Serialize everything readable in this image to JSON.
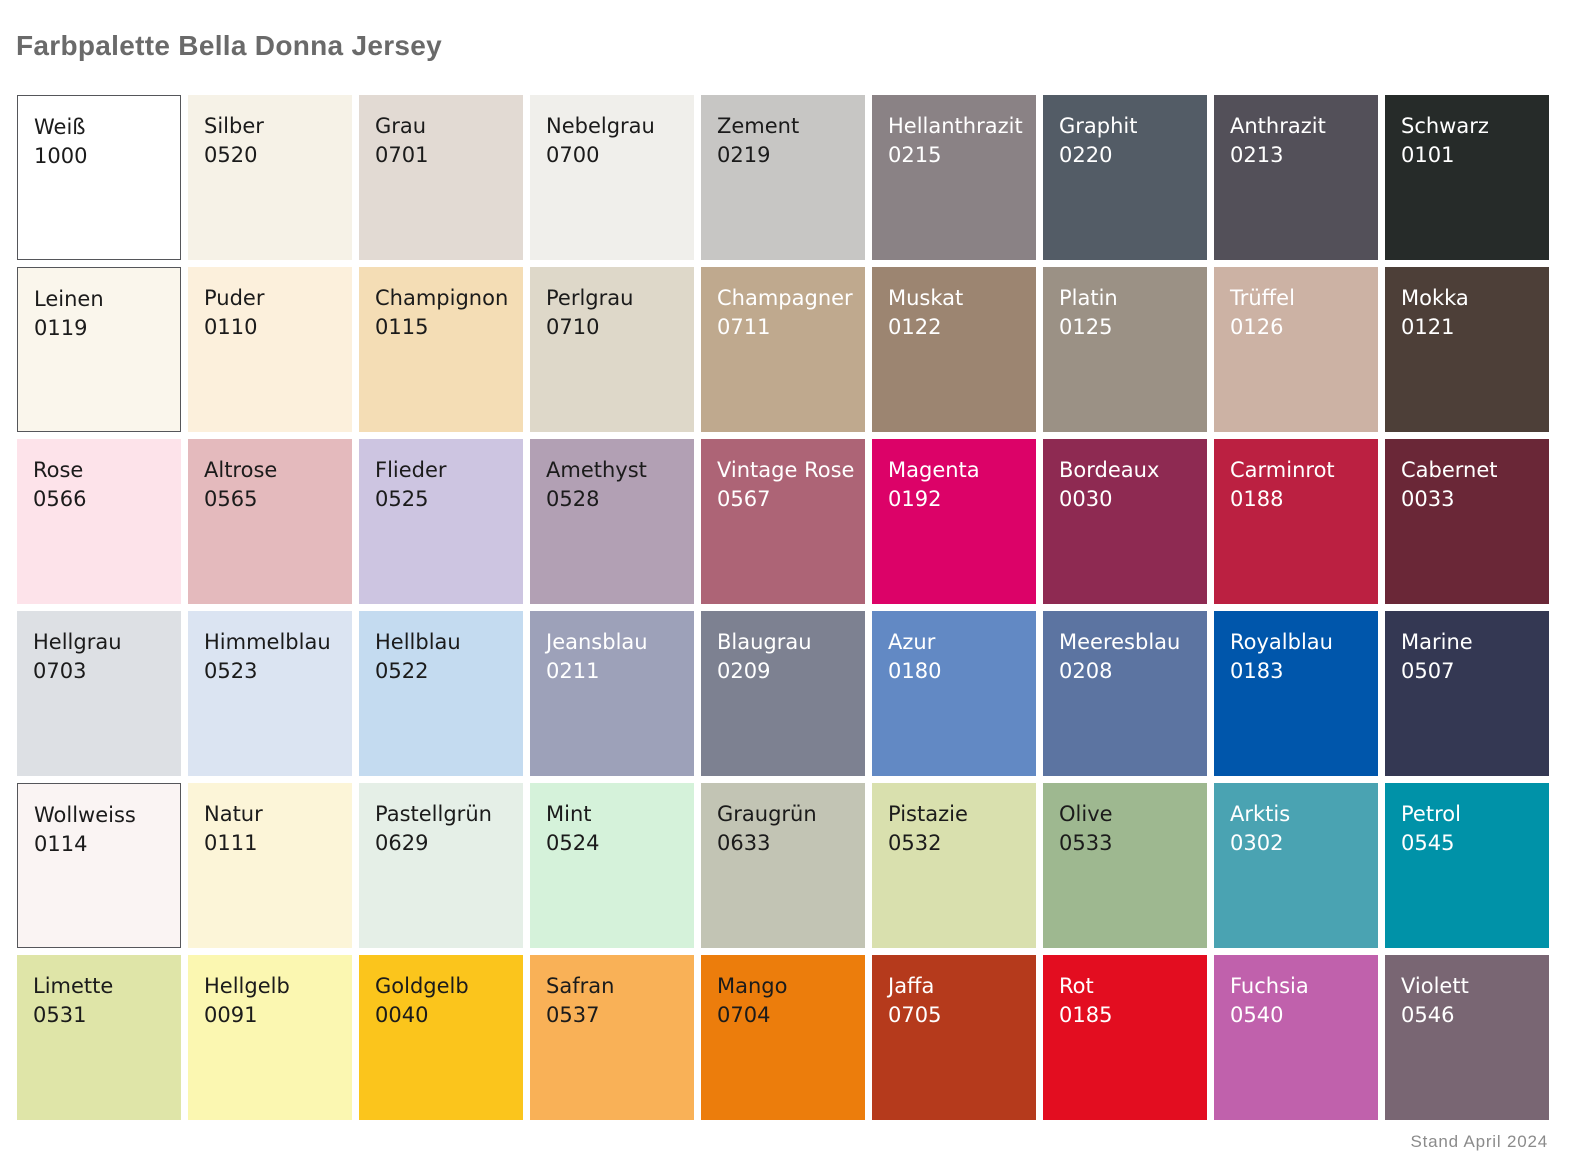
{
  "title": "Farbpalette Bella Donna Jersey",
  "footer": "Stand April 2024",
  "text_colors": {
    "dark": "#1b1b1b",
    "light": "#ffffff"
  },
  "grid": {
    "columns": 9,
    "rows": [
      [
        {
          "name": "Weiß",
          "code": "1000",
          "bg": "#ffffff",
          "text": "dark",
          "border": true
        },
        {
          "name": "Silber",
          "code": "0520",
          "bg": "#f6f2e7",
          "text": "dark"
        },
        {
          "name": "Grau",
          "code": "0701",
          "bg": "#e2dad3",
          "text": "dark"
        },
        {
          "name": "Nebelgrau",
          "code": "0700",
          "bg": "#f0efeb",
          "text": "dark"
        },
        {
          "name": "Zement",
          "code": "0219",
          "bg": "#c7c6c4",
          "text": "dark"
        },
        {
          "name": "Hellanthrazit",
          "code": "0215",
          "bg": "#8a8285",
          "text": "light"
        },
        {
          "name": "Graphit",
          "code": "0220",
          "bg": "#535c66",
          "text": "light"
        },
        {
          "name": "Anthrazit",
          "code": "0213",
          "bg": "#535059",
          "text": "light"
        },
        {
          "name": "Schwarz",
          "code": "0101",
          "bg": "#262b29",
          "text": "light"
        }
      ],
      [
        {
          "name": "Leinen",
          "code": "0119",
          "bg": "#faf6ec",
          "text": "dark",
          "border": true
        },
        {
          "name": "Puder",
          "code": "0110",
          "bg": "#fcf0dc",
          "text": "dark"
        },
        {
          "name": "Champignon",
          "code": "0115",
          "bg": "#f4ddb5",
          "text": "dark"
        },
        {
          "name": "Perlgrau",
          "code": "0710",
          "bg": "#ded8c9",
          "text": "dark"
        },
        {
          "name": "Champagner",
          "code": "0711",
          "bg": "#bfa98e",
          "text": "light"
        },
        {
          "name": "Muskat",
          "code": "0122",
          "bg": "#9c8571",
          "text": "light"
        },
        {
          "name": "Platin",
          "code": "0125",
          "bg": "#9b9185",
          "text": "light"
        },
        {
          "name": "Trüffel",
          "code": "0126",
          "bg": "#ccb2a4",
          "text": "light"
        },
        {
          "name": "Mokka",
          "code": "0121",
          "bg": "#4d3f38",
          "text": "light"
        }
      ],
      [
        {
          "name": "Rose",
          "code": "0566",
          "bg": "#fde3ea",
          "text": "dark"
        },
        {
          "name": "Altrose",
          "code": "0565",
          "bg": "#e4babd",
          "text": "dark"
        },
        {
          "name": "Flieder",
          "code": "0525",
          "bg": "#cdc5e1",
          "text": "dark"
        },
        {
          "name": "Amethyst",
          "code": "0528",
          "bg": "#b2a0b4",
          "text": "dark"
        },
        {
          "name": "Vintage Rose",
          "code": "0567",
          "bg": "#ad6476",
          "text": "light"
        },
        {
          "name": "Magenta",
          "code": "0192",
          "bg": "#dc0268",
          "text": "light"
        },
        {
          "name": "Bordeaux",
          "code": "0030",
          "bg": "#8e2a52",
          "text": "light"
        },
        {
          "name": "Carminrot",
          "code": "0188",
          "bg": "#bb2041",
          "text": "light"
        },
        {
          "name": "Cabernet",
          "code": "0033",
          "bg": "#6a2737",
          "text": "light"
        }
      ],
      [
        {
          "name": "Hellgrau",
          "code": "0703",
          "bg": "#dde0e4",
          "text": "dark"
        },
        {
          "name": "Himmelblau",
          "code": "0523",
          "bg": "#dbe4f2",
          "text": "dark"
        },
        {
          "name": "Hellblau",
          "code": "0522",
          "bg": "#c4dbf0",
          "text": "dark"
        },
        {
          "name": "Jeansblau",
          "code": "0211",
          "bg": "#9da1b9",
          "text": "light"
        },
        {
          "name": "Blaugrau",
          "code": "0209",
          "bg": "#7d8191",
          "text": "light"
        },
        {
          "name": "Azur",
          "code": "0180",
          "bg": "#6289c4",
          "text": "light"
        },
        {
          "name": "Meeresblau",
          "code": "0208",
          "bg": "#5c74a1",
          "text": "light"
        },
        {
          "name": "Royalblau",
          "code": "0183",
          "bg": "#0056ab",
          "text": "light"
        },
        {
          "name": "Marine",
          "code": "0507",
          "bg": "#343853",
          "text": "light"
        }
      ],
      [
        {
          "name": "Wollweiss",
          "code": "0114",
          "bg": "#faf4f3",
          "text": "dark",
          "border": true
        },
        {
          "name": "Natur",
          "code": "0111",
          "bg": "#fcf5d8",
          "text": "dark"
        },
        {
          "name": "Pastellgrün",
          "code": "0629",
          "bg": "#e5efe7",
          "text": "dark"
        },
        {
          "name": "Mint",
          "code": "0524",
          "bg": "#d5f2da",
          "text": "dark"
        },
        {
          "name": "Graugrün",
          "code": "0633",
          "bg": "#c2c4b4",
          "text": "dark"
        },
        {
          "name": "Pistazie",
          "code": "0532",
          "bg": "#d9e0ae",
          "text": "dark"
        },
        {
          "name": "Olive",
          "code": "0533",
          "bg": "#9eb890",
          "text": "dark"
        },
        {
          "name": "Arktis",
          "code": "0302",
          "bg": "#4aa3b2",
          "text": "light"
        },
        {
          "name": "Petrol",
          "code": "0545",
          "bg": "#0092a8",
          "text": "light"
        }
      ],
      [
        {
          "name": "Limette",
          "code": "0531",
          "bg": "#dfe5a8",
          "text": "dark"
        },
        {
          "name": "Hellgelb",
          "code": "0091",
          "bg": "#fbf7b1",
          "text": "dark"
        },
        {
          "name": "Goldgelb",
          "code": "0040",
          "bg": "#fbc51c",
          "text": "dark"
        },
        {
          "name": "Safran",
          "code": "0537",
          "bg": "#f9b157",
          "text": "dark"
        },
        {
          "name": "Mango",
          "code": "0704",
          "bg": "#ec7d0c",
          "text": "dark"
        },
        {
          "name": "Jaffa",
          "code": "0705",
          "bg": "#b53a1c",
          "text": "light"
        },
        {
          "name": "Rot",
          "code": "0185",
          "bg": "#e30d20",
          "text": "light"
        },
        {
          "name": "Fuchsia",
          "code": "0540",
          "bg": "#c061ac",
          "text": "light"
        },
        {
          "name": "Violett",
          "code": "0546",
          "bg": "#796673",
          "text": "light"
        }
      ]
    ]
  }
}
